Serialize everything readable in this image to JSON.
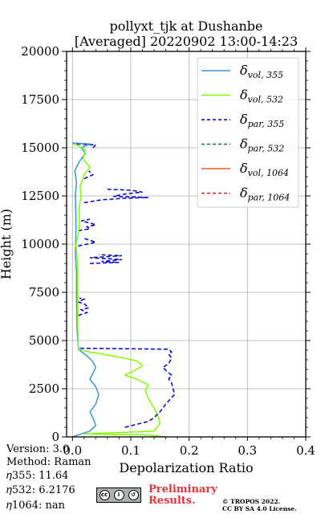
{
  "chart_data": {
    "type": "line",
    "title_line1": "pollyxt_tjk at Dushanbe",
    "title_line2": "[Averaged] 20220902 13:00-14:23",
    "xlabel": "Depolarization Ratio",
    "ylabel": "Height (m)",
    "xlim": [
      -0.01,
      0.4
    ],
    "ylim": [
      0,
      20000
    ],
    "xticks": [
      "0.0",
      "0.1",
      "0.2",
      "0.3",
      "0.4"
    ],
    "xtick_values": [
      0.0,
      0.1,
      0.2,
      0.3,
      0.4
    ],
    "yticks": [
      "0",
      "2500",
      "5000",
      "7500",
      "10000",
      "12500",
      "15000",
      "17500",
      "20000"
    ],
    "ytick_values": [
      0,
      2500,
      5000,
      7500,
      10000,
      12500,
      15000,
      17500,
      20000
    ],
    "grid": true,
    "legend_position": "top-right",
    "series": [
      {
        "name": "δvol,355",
        "label_main": "δ",
        "label_sub": "vol, 355",
        "color": "#3498db",
        "dash": "solid",
        "points": [
          [
            0.0,
            0
          ],
          [
            0.01,
            100
          ],
          [
            0.03,
            300
          ],
          [
            0.04,
            600
          ],
          [
            0.035,
            1000
          ],
          [
            0.03,
            1300
          ],
          [
            0.04,
            1700
          ],
          [
            0.045,
            2200
          ],
          [
            0.04,
            2600
          ],
          [
            0.03,
            3000
          ],
          [
            0.035,
            3300
          ],
          [
            0.04,
            3600
          ],
          [
            0.035,
            3900
          ],
          [
            0.025,
            4200
          ],
          [
            0.012,
            4500
          ],
          [
            0.01,
            4700
          ],
          [
            0.008,
            5500
          ],
          [
            0.007,
            7000
          ],
          [
            0.007,
            8500
          ],
          [
            0.005,
            9500
          ],
          [
            0.006,
            10500
          ],
          [
            0.006,
            11500
          ],
          [
            0.005,
            12500
          ],
          [
            0.007,
            13200
          ],
          [
            0.004,
            13800
          ],
          [
            0.012,
            14300
          ],
          [
            0.022,
            14700
          ],
          [
            0.015,
            15000
          ],
          [
            0.03,
            15200
          ],
          [
            0.0,
            15250
          ]
        ]
      },
      {
        "name": "δvol,532",
        "label_main": "δ",
        "label_sub": "vol, 532",
        "color": "#7fff00",
        "dash": "solid",
        "points": [
          [
            0.16,
            0
          ],
          [
            0.13,
            100
          ],
          [
            0.02,
            150
          ],
          [
            0.14,
            300
          ],
          [
            0.15,
            700
          ],
          [
            0.148,
            1000
          ],
          [
            0.14,
            1500
          ],
          [
            0.13,
            2000
          ],
          [
            0.125,
            2400
          ],
          [
            0.13,
            2700
          ],
          [
            0.11,
            3000
          ],
          [
            0.09,
            3200
          ],
          [
            0.11,
            3500
          ],
          [
            0.12,
            3700
          ],
          [
            0.11,
            3950
          ],
          [
            0.07,
            4200
          ],
          [
            0.03,
            4400
          ],
          [
            0.01,
            4550
          ],
          [
            0.01,
            4800
          ],
          [
            0.009,
            6000
          ],
          [
            0.009,
            7500
          ],
          [
            0.009,
            9000
          ],
          [
            0.006,
            10000
          ],
          [
            0.01,
            10500
          ],
          [
            0.012,
            11000
          ],
          [
            0.012,
            12000
          ],
          [
            0.015,
            12500
          ],
          [
            0.013,
            13000
          ],
          [
            0.02,
            13600
          ],
          [
            0.03,
            14000
          ],
          [
            0.018,
            14400
          ],
          [
            0.022,
            14900
          ],
          [
            0.01,
            15100
          ],
          [
            0.0,
            15200
          ]
        ]
      },
      {
        "name": "δpar,355",
        "label_main": "δ",
        "label_sub": "par, 355",
        "color": "#0000cd",
        "dash": "5,3",
        "points": [
          [
            0.09,
            500
          ],
          [
            0.13,
            800
          ],
          [
            0.14,
            1000
          ],
          [
            0.15,
            1300
          ],
          [
            0.16,
            1700
          ],
          [
            0.175,
            2200
          ],
          [
            0.17,
            2800
          ],
          [
            0.165,
            3000
          ],
          [
            0.17,
            3200
          ],
          [
            0.155,
            3600
          ],
          [
            0.165,
            3800
          ],
          [
            0.17,
            4100
          ],
          [
            0.165,
            4300
          ],
          [
            0.17,
            4400
          ],
          [
            0.165,
            4550
          ],
          [
            0.01,
            4600
          ]
        ]
      },
      {
        "name": "δpar,532",
        "label_main": "δ",
        "label_sub": "par, 532",
        "color": "#117a3a",
        "dash": "5,3",
        "points": []
      },
      {
        "name": "δvol,1064",
        "label_main": "δ",
        "label_sub": "vol, 1064",
        "color": "#ff5733",
        "dash": "solid",
        "points": []
      },
      {
        "name": "δpar,1064",
        "label_main": "δ",
        "label_sub": "par, 1064",
        "color": "#d62728",
        "dash": "5,3",
        "points": []
      }
    ],
    "par355_segments": [
      [
        [
          0.01,
          6300
        ],
        [
          0.025,
          6450
        ],
        [
          0.015,
          6600
        ],
        [
          0.028,
          6700
        ],
        [
          0.02,
          6900
        ],
        [
          0.01,
          7000
        ],
        [
          0.02,
          7150
        ],
        [
          0.012,
          7200
        ]
      ],
      [
        [
          0.03,
          9000
        ],
        [
          0.08,
          9050
        ],
        [
          0.05,
          9100
        ],
        [
          0.085,
          9200
        ],
        [
          0.03,
          9300
        ],
        [
          0.06,
          9350
        ],
        [
          0.085,
          9400
        ],
        [
          0.045,
          9450
        ]
      ],
      [
        [
          0.01,
          9900
        ],
        [
          0.025,
          10000
        ],
        [
          0.04,
          10100
        ],
        [
          0.03,
          10200
        ],
        [
          0.02,
          10300
        ]
      ],
      [
        [
          0.01,
          10700
        ],
        [
          0.03,
          10800
        ],
        [
          0.025,
          10900
        ],
        [
          0.04,
          11000
        ],
        [
          0.03,
          11100
        ],
        [
          0.015,
          11200
        ],
        [
          0.03,
          11300
        ]
      ],
      [
        [
          0.02,
          12150
        ],
        [
          0.05,
          12300
        ],
        [
          0.09,
          12380
        ],
        [
          0.13,
          12420
        ],
        [
          0.07,
          12480
        ],
        [
          0.09,
          12600
        ],
        [
          0.12,
          12700
        ],
        [
          0.1,
          12800
        ],
        [
          0.06,
          12850
        ]
      ],
      [
        [
          0.02,
          13400
        ],
        [
          0.035,
          13600
        ],
        [
          0.028,
          13800
        ]
      ],
      [
        [
          0.035,
          15000
        ],
        [
          0.04,
          15150
        ],
        [
          0.0,
          15200
        ]
      ]
    ]
  },
  "footer": {
    "version": "Version: 3.0",
    "method": "Method: Raman",
    "eta355": "𝜂355:  11.64",
    "eta532": "𝜂532: 6.2176",
    "eta1064": "𝜂1064:    nan",
    "prelim_1": "Preliminary",
    "prelim_2": "Results.",
    "license_1": "© TROPOS 2022.",
    "license_2": "CC BY SA 4.0 License.",
    "badge_text": "BY  SA"
  }
}
